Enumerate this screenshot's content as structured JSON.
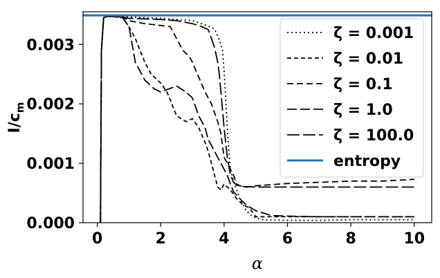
{
  "chart_data": {
    "type": "line",
    "xlabel": "α",
    "ylabel": "I/c",
    "ylabel_sub": "m",
    "xlim": [
      -0.45,
      10.55
    ],
    "ylim": [
      0.0,
      0.00355
    ],
    "xticks": [
      0,
      2,
      4,
      6,
      8,
      10
    ],
    "xtick_labels": [
      "0",
      "2",
      "4",
      "6",
      "8",
      "10"
    ],
    "yticks": [
      0.0,
      0.001,
      0.002,
      0.003
    ],
    "ytick_labels": [
      "0.000",
      "0.001",
      "0.002",
      "0.003"
    ],
    "grid": false,
    "legend_position": "top-right",
    "legend_labels": [
      "ζ = 0.001",
      "ζ = 0.01",
      "ζ = 0.1",
      "ζ = 1.0",
      "ζ = 100.0",
      "entropy"
    ],
    "series": [
      {
        "name": "ζ = 0.001",
        "dash": "2,4",
        "color": "#000000",
        "x": [
          0.1,
          0.13,
          0.2,
          0.3,
          0.5,
          1.0,
          2.0,
          3.0,
          3.5,
          3.7,
          3.85,
          3.95,
          4.0,
          4.05,
          4.1,
          4.15,
          4.2,
          4.3,
          4.5,
          4.7,
          4.9,
          5.2,
          6.0,
          7.0,
          8.0,
          9.0,
          10.0
        ],
        "y": [
          0.0,
          0.0029,
          0.00345,
          0.00347,
          0.00347,
          0.00346,
          0.00344,
          0.0034,
          0.00331,
          0.00326,
          0.00308,
          0.0029,
          0.00255,
          0.0021,
          0.0016,
          0.0012,
          0.0009,
          0.0007,
          0.0004,
          0.0002,
          0.0001,
          5e-05,
          4e-05,
          4e-05,
          5e-05,
          5e-05,
          5e-05
        ]
      },
      {
        "name": "ζ = 0.01",
        "dash": "6,4",
        "color": "#000000",
        "x": [
          0.1,
          0.13,
          0.2,
          0.3,
          0.5,
          0.8,
          1.0,
          1.2,
          1.5,
          1.7,
          2.0,
          2.2,
          2.5,
          2.8,
          3.0,
          3.2,
          3.4,
          3.5,
          3.6,
          3.7,
          3.8,
          3.9,
          4.0,
          4.2,
          4.4,
          4.6,
          4.8,
          5.0,
          6.0,
          7.0,
          8.0,
          9.0,
          10.0
        ],
        "y": [
          0.0,
          0.0029,
          0.00345,
          0.00347,
          0.00347,
          0.00345,
          0.0033,
          0.0031,
          0.0027,
          0.0025,
          0.00235,
          0.0022,
          0.0018,
          0.0017,
          0.00175,
          0.0016,
          0.00135,
          0.0012,
          0.001,
          0.0008,
          0.0006,
          0.00055,
          0.00065,
          0.00055,
          0.0004,
          0.0003,
          0.00025,
          0.0001,
          0.0001,
          0.0001,
          0.0001,
          0.0001,
          0.0001
        ]
      },
      {
        "name": "ζ = 0.1",
        "dash": "9,5",
        "color": "#000000",
        "x": [
          0.1,
          0.13,
          0.2,
          0.3,
          0.5,
          0.8,
          1.0,
          1.5,
          2.0,
          2.3,
          2.5,
          2.7,
          2.9,
          3.0,
          3.2,
          3.4,
          3.6,
          3.8,
          3.9,
          4.0,
          4.2,
          4.3,
          4.4,
          4.5,
          4.7,
          5.0,
          5.5,
          6.0,
          7.0,
          8.0,
          9.0,
          10.0
        ],
        "y": [
          0.0,
          0.0029,
          0.00345,
          0.00347,
          0.00347,
          0.00346,
          0.0034,
          0.00335,
          0.00332,
          0.0033,
          0.0031,
          0.0029,
          0.0028,
          0.0027,
          0.00245,
          0.0022,
          0.002,
          0.0017,
          0.0015,
          0.0011,
          0.0009,
          0.0008,
          0.00065,
          0.00062,
          0.0006,
          0.00062,
          0.00064,
          0.00066,
          0.00068,
          0.0007,
          0.0007,
          0.00073
        ]
      },
      {
        "name": "ζ = 1.0",
        "dash": "14,5",
        "color": "#000000",
        "x": [
          0.1,
          0.13,
          0.2,
          0.3,
          0.5,
          0.8,
          1.0,
          1.2,
          1.5,
          1.8,
          2.0,
          2.5,
          2.8,
          3.0,
          3.2,
          3.4,
          3.5,
          3.6,
          3.8,
          4.0,
          4.1,
          4.2,
          4.3,
          4.5,
          4.7,
          5.0,
          5.5,
          6.0,
          7.0,
          8.0,
          9.0,
          10.0
        ],
        "y": [
          0.0,
          0.0029,
          0.00345,
          0.00347,
          0.00347,
          0.00345,
          0.0033,
          0.0027,
          0.0024,
          0.00225,
          0.0022,
          0.0023,
          0.0022,
          0.0021,
          0.0018,
          0.0016,
          0.0014,
          0.0013,
          0.0011,
          0.0009,
          0.0008,
          0.00065,
          0.00052,
          0.0004,
          0.0003,
          0.0002,
          0.00012,
          0.00011,
          0.0001,
          0.0001,
          0.0001,
          0.0001
        ]
      },
      {
        "name": "ζ = 100.0",
        "dash": "18,5",
        "color": "#000000",
        "x": [
          0.1,
          0.13,
          0.2,
          0.3,
          0.5,
          0.8,
          1.0,
          1.5,
          2.0,
          2.5,
          3.0,
          3.3,
          3.5,
          3.6,
          3.7,
          3.8,
          3.85,
          3.9,
          3.95,
          4.0,
          4.05,
          4.1,
          4.15,
          4.2,
          4.3,
          4.4,
          4.6,
          5.0,
          6.0,
          7.0,
          8.0,
          9.0,
          10.0
        ],
        "y": [
          0.0,
          0.0029,
          0.00345,
          0.00347,
          0.00347,
          0.00346,
          0.00344,
          0.00343,
          0.00342,
          0.0034,
          0.00335,
          0.0033,
          0.00325,
          0.0031,
          0.00295,
          0.0027,
          0.0025,
          0.0022,
          0.0019,
          0.0016,
          0.00135,
          0.0011,
          0.00095,
          0.0008,
          0.00068,
          0.00063,
          0.00061,
          0.0006,
          0.0006,
          0.0006,
          0.0006,
          0.0006,
          0.0006
        ]
      },
      {
        "name": "entropy",
        "dash": "",
        "color": "#1f77b4",
        "x": [
          -0.45,
          10.55
        ],
        "y": [
          0.00349,
          0.00349
        ]
      }
    ]
  }
}
